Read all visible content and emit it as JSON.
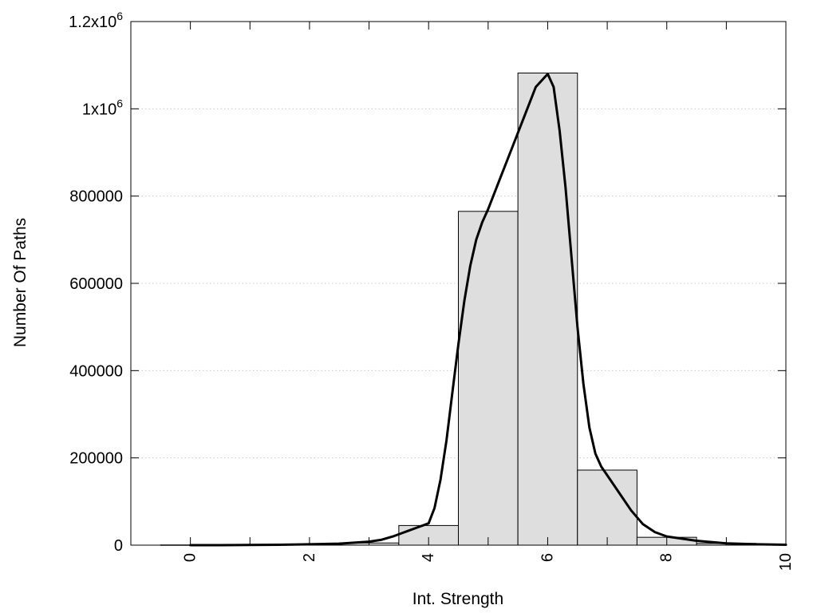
{
  "chart_data": {
    "type": "bar",
    "xlabel": "Int. Strength",
    "ylabel": "Number Of Paths",
    "xlim": [
      -1,
      10
    ],
    "ylim": [
      0,
      1200000
    ],
    "grid": "horizontal-dotted",
    "x_ticks": [
      {
        "value": 0,
        "label": "0"
      },
      {
        "value": 2,
        "label": "2"
      },
      {
        "value": 4,
        "label": "4"
      },
      {
        "value": 6,
        "label": "6"
      },
      {
        "value": 8,
        "label": "8"
      },
      {
        "value": 10,
        "label": "10"
      }
    ],
    "y_ticks": [
      {
        "value": 0,
        "label": "0"
      },
      {
        "value": 200000,
        "label": "200000"
      },
      {
        "value": 400000,
        "label": "400000"
      },
      {
        "value": 600000,
        "label": "600000"
      },
      {
        "value": 800000,
        "label": "800000"
      },
      {
        "value": 1000000,
        "label": "1x10",
        "sup": "6"
      },
      {
        "value": 1200000,
        "label": "1.2x10",
        "sup": "6"
      }
    ],
    "bars": {
      "fill": "#dedede",
      "width": 1,
      "centers": [
        0,
        1,
        2,
        3,
        4,
        5,
        6,
        7,
        8,
        9
      ],
      "values": [
        500,
        800,
        1500,
        5000,
        45000,
        765000,
        1082000,
        172000,
        18000,
        4000
      ]
    },
    "curve": {
      "color": "#000000",
      "x": [
        0,
        0.5,
        1,
        1.5,
        2,
        2.5,
        3,
        3.2,
        3.4,
        3.6,
        3.8,
        4,
        4.1,
        4.2,
        4.3,
        4.4,
        4.5,
        4.6,
        4.7,
        4.8,
        4.9,
        5,
        5.2,
        5.4,
        5.6,
        5.8,
        6,
        6.1,
        6.2,
        6.3,
        6.4,
        6.5,
        6.6,
        6.7,
        6.8,
        6.9,
        7,
        7.2,
        7.4,
        7.6,
        7.8,
        8,
        8.5,
        9,
        9.5,
        10
      ],
      "y": [
        0,
        0,
        500,
        1000,
        2000,
        3500,
        8000,
        12000,
        20000,
        30000,
        40000,
        50000,
        85000,
        150000,
        240000,
        350000,
        460000,
        560000,
        640000,
        700000,
        740000,
        770000,
        840000,
        910000,
        980000,
        1050000,
        1080000,
        1050000,
        950000,
        820000,
        660000,
        500000,
        370000,
        270000,
        210000,
        180000,
        160000,
        120000,
        80000,
        48000,
        30000,
        20000,
        10000,
        4000,
        2000,
        1000
      ]
    }
  }
}
